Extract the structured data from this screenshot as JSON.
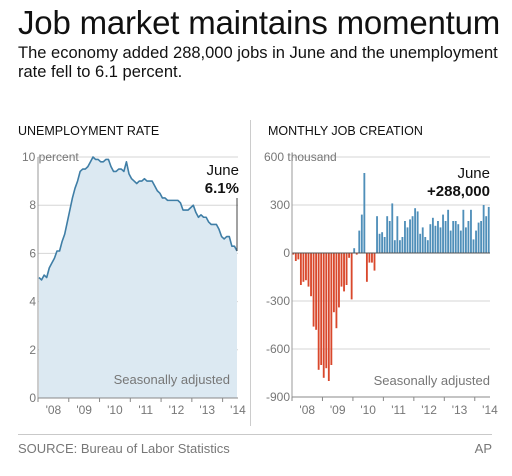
{
  "header": {
    "title": "Job market maintains momentum",
    "subtitle": "The economy added 288,000 jobs in June and the unemployment rate fell to 6.1 percent."
  },
  "footer": {
    "source": "SOURCE: Bureau of Labor Statistics",
    "credit": "AP"
  },
  "colors": {
    "line": "#3f7ea6",
    "area_fill": "#dce9f2",
    "bar_positive": "#4f8fb9",
    "bar_negative": "#d9482c",
    "gridline": "#d6d6d6",
    "axis_text": "#777777"
  },
  "chart_data": [
    {
      "type": "area",
      "title": "UNEMPLOYMENT RATE",
      "unit_label": "10 percent",
      "note": "Seasonally adjusted",
      "annotation": {
        "label": "June",
        "value": "6.1%"
      },
      "ylim": [
        0,
        10
      ],
      "yticks": [
        "0",
        "2",
        "4",
        "6",
        "8",
        "10 percent"
      ],
      "xticks": [
        "'08",
        "'09",
        "'10",
        "'11",
        "'12",
        "'13",
        "'14"
      ],
      "x_start": "Jan 2008",
      "x_end": "Jun 2014",
      "grid": true,
      "values": [
        5.0,
        4.9,
        5.1,
        5.0,
        5.4,
        5.6,
        5.8,
        6.1,
        6.1,
        6.5,
        6.8,
        7.3,
        7.8,
        8.3,
        8.7,
        9.0,
        9.4,
        9.5,
        9.5,
        9.6,
        9.8,
        10.0,
        9.9,
        9.9,
        9.8,
        9.8,
        9.9,
        9.9,
        9.6,
        9.4,
        9.4,
        9.5,
        9.5,
        9.4,
        9.8,
        9.3,
        9.1,
        9.0,
        8.9,
        9.0,
        9.0,
        9.1,
        9.0,
        9.0,
        9.0,
        8.8,
        8.6,
        8.5,
        8.3,
        8.3,
        8.2,
        8.2,
        8.2,
        8.2,
        8.2,
        8.1,
        7.8,
        7.8,
        7.8,
        7.9,
        8.0,
        7.7,
        7.5,
        7.6,
        7.5,
        7.5,
        7.3,
        7.2,
        7.2,
        7.2,
        7.0,
        6.7,
        6.6,
        6.7,
        6.7,
        6.3,
        6.3,
        6.1
      ]
    },
    {
      "type": "bar",
      "title": "MONTHLY JOB CREATION",
      "unit_label": "600 thousand",
      "note": "Seasonally adjusted",
      "annotation": {
        "label": "June",
        "value": "+288,000"
      },
      "ylim": [
        -900,
        600
      ],
      "yticks": [
        "-900",
        "-600",
        "-300",
        "0",
        "300",
        "600 thousand"
      ],
      "xticks": [
        "'08",
        "'09",
        "'10",
        "'11",
        "'12",
        "'13",
        "'14"
      ],
      "x_start": "Jan 2008",
      "x_end": "Jun 2014",
      "grid": true,
      "values": [
        -10,
        -50,
        -40,
        -200,
        -180,
        -170,
        -210,
        -270,
        -460,
        -480,
        -730,
        -700,
        -780,
        -720,
        -800,
        -700,
        -370,
        -470,
        -340,
        -210,
        -240,
        -200,
        -30,
        -290,
        30,
        -10,
        140,
        240,
        500,
        -180,
        -60,
        -60,
        -110,
        230,
        120,
        130,
        100,
        230,
        200,
        310,
        80,
        230,
        80,
        100,
        200,
        160,
        210,
        230,
        280,
        260,
        120,
        160,
        100,
        80,
        180,
        220,
        170,
        200,
        160,
        240,
        200,
        270,
        140,
        200,
        200,
        180,
        140,
        270,
        160,
        200,
        270,
        85,
        140,
        190,
        200,
        300,
        230,
        288
      ]
    }
  ]
}
